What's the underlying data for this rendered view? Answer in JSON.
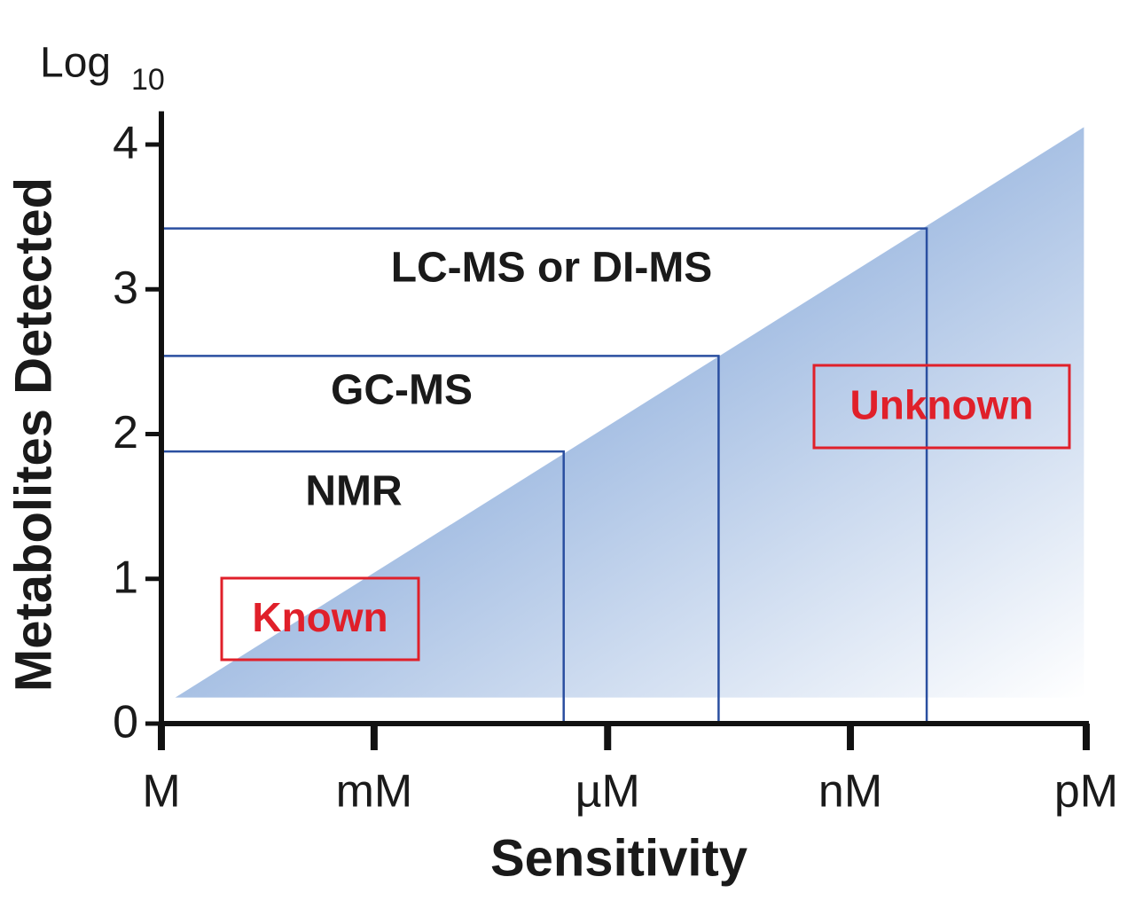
{
  "chart_data": {
    "type": "area",
    "xlabel": "Sensitivity",
    "ylabel": "Metabolites Detected",
    "y_unit": "Log",
    "y_unit_sub": "10",
    "xlim": [
      0,
      4
    ],
    "ylim": [
      0,
      4.23
    ],
    "xticks": [
      {
        "value": 0,
        "label": "M"
      },
      {
        "value": 0.92,
        "label": "mM"
      },
      {
        "value": 1.93,
        "label": "µM"
      },
      {
        "value": 2.98,
        "label": "nM"
      },
      {
        "value": 4,
        "label": "pM"
      }
    ],
    "yticks": [
      0,
      1,
      2,
      3,
      4
    ],
    "area": {
      "x": [
        0.06,
        3.99
      ],
      "y": [
        0.18,
        4.12
      ],
      "baseline": 0.18,
      "color": "#8eaedc"
    },
    "techniques": [
      {
        "label": "NMR",
        "x": 1.74,
        "y": 1.88
      },
      {
        "label": "GC-MS",
        "x": 2.41,
        "y": 2.54
      },
      {
        "label": "LC-MS or DI-MS",
        "x": 3.31,
        "y": 3.42
      }
    ],
    "technique_color": "#2a4fa0",
    "annotations": [
      {
        "text": "Known",
        "color": "#e0202a"
      },
      {
        "text": "Unknown",
        "color": "#e0202a"
      }
    ]
  }
}
